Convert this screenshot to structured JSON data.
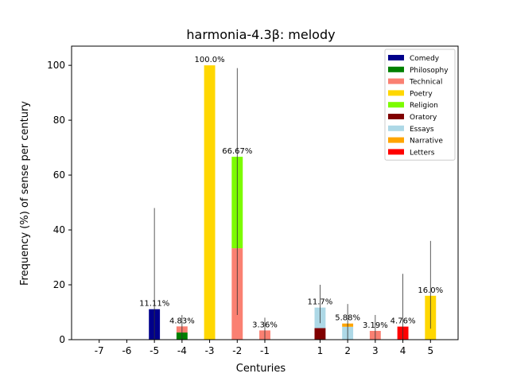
{
  "chart_data": {
    "type": "bar",
    "title": "harmonia-4.3β: melody",
    "xlabel": "Centuries",
    "ylabel": "Frequency (%) of sense per century",
    "xlim": [
      -8,
      6
    ],
    "ylim": [
      0,
      107
    ],
    "xticks": [
      -7,
      -6,
      -5,
      -4,
      -3,
      -2,
      -1,
      1,
      2,
      3,
      4,
      5
    ],
    "xtick_labels": [
      "-7",
      "-6",
      "-5",
      "-4",
      "-3",
      "-2",
      "-1",
      "1",
      "2",
      "3",
      "4",
      "5"
    ],
    "yticks": [
      0,
      20,
      40,
      60,
      80,
      100
    ],
    "ytick_labels": [
      "0",
      "20",
      "40",
      "60",
      "80",
      "100"
    ],
    "grid": false,
    "legend_position": "top-right",
    "stacked": true,
    "series": [
      {
        "name": "Comedy",
        "color": "#00008b",
        "values": [
          0,
          0,
          11.11,
          0,
          0,
          0,
          0,
          0,
          0,
          0,
          0,
          0
        ]
      },
      {
        "name": "Philosophy",
        "color": "#008000",
        "values": [
          0,
          0,
          0,
          2.6,
          0,
          0,
          0,
          0,
          0,
          0,
          0,
          0
        ]
      },
      {
        "name": "Technical",
        "color": "#fa8072",
        "values": [
          0,
          0,
          0,
          2.23,
          0,
          33.33,
          3.36,
          0,
          0,
          3.19,
          0,
          0
        ]
      },
      {
        "name": "Poetry",
        "color": "#ffd700",
        "values": [
          0,
          0,
          0,
          0,
          100,
          0,
          0,
          0,
          0,
          0,
          0,
          16.0
        ]
      },
      {
        "name": "Religion",
        "color": "#7cfc00",
        "values": [
          0,
          0,
          0,
          0,
          0,
          33.34,
          0,
          0,
          0,
          0,
          0,
          0
        ]
      },
      {
        "name": "Oratory",
        "color": "#800000",
        "values": [
          0,
          0,
          0,
          0,
          0,
          0,
          0,
          4.2,
          0,
          0,
          0,
          0
        ]
      },
      {
        "name": "Essays",
        "color": "#add8e6",
        "values": [
          0,
          0,
          0,
          0,
          0,
          0,
          0,
          7.5,
          4.7,
          0,
          0,
          0
        ]
      },
      {
        "name": "Narrative",
        "color": "#ffa500",
        "values": [
          0,
          0,
          0,
          0,
          0,
          0,
          0,
          0,
          1.18,
          0,
          0,
          0
        ]
      },
      {
        "name": "Letters",
        "color": "#ff0000",
        "values": [
          0,
          0,
          0,
          0,
          0,
          0,
          0,
          0,
          0,
          0,
          4.76,
          0
        ]
      }
    ],
    "bar_labels": [
      {
        "x": -5,
        "label": "11.11%",
        "y": 11.11
      },
      {
        "x": -4,
        "label": "4.83%",
        "y": 4.83
      },
      {
        "x": -3,
        "label": "100.0%",
        "y": 100.0
      },
      {
        "x": -2,
        "label": "66.67%",
        "y": 66.67
      },
      {
        "x": -1,
        "label": "3.36%",
        "y": 3.36
      },
      {
        "x": 1,
        "label": "11.7%",
        "y": 11.7
      },
      {
        "x": 2,
        "label": "5.88%",
        "y": 5.88
      },
      {
        "x": 3,
        "label": "3.19%",
        "y": 3.19
      },
      {
        "x": 4,
        "label": "4.76%",
        "y": 4.76
      },
      {
        "x": 5,
        "label": "16.0%",
        "y": 16.0
      }
    ],
    "error_bars": [
      {
        "x": -5,
        "low": 0,
        "high": 48
      },
      {
        "x": -4,
        "low": 0,
        "high": 9
      },
      {
        "x": -2,
        "low": 9,
        "high": 99
      },
      {
        "x": -1,
        "low": 0,
        "high": 8
      },
      {
        "x": 1,
        "low": 6,
        "high": 20
      },
      {
        "x": 2,
        "low": 0,
        "high": 13
      },
      {
        "x": 3,
        "low": 0,
        "high": 9
      },
      {
        "x": 4,
        "low": 0,
        "high": 24
      },
      {
        "x": 5,
        "low": 4,
        "high": 36
      }
    ]
  }
}
